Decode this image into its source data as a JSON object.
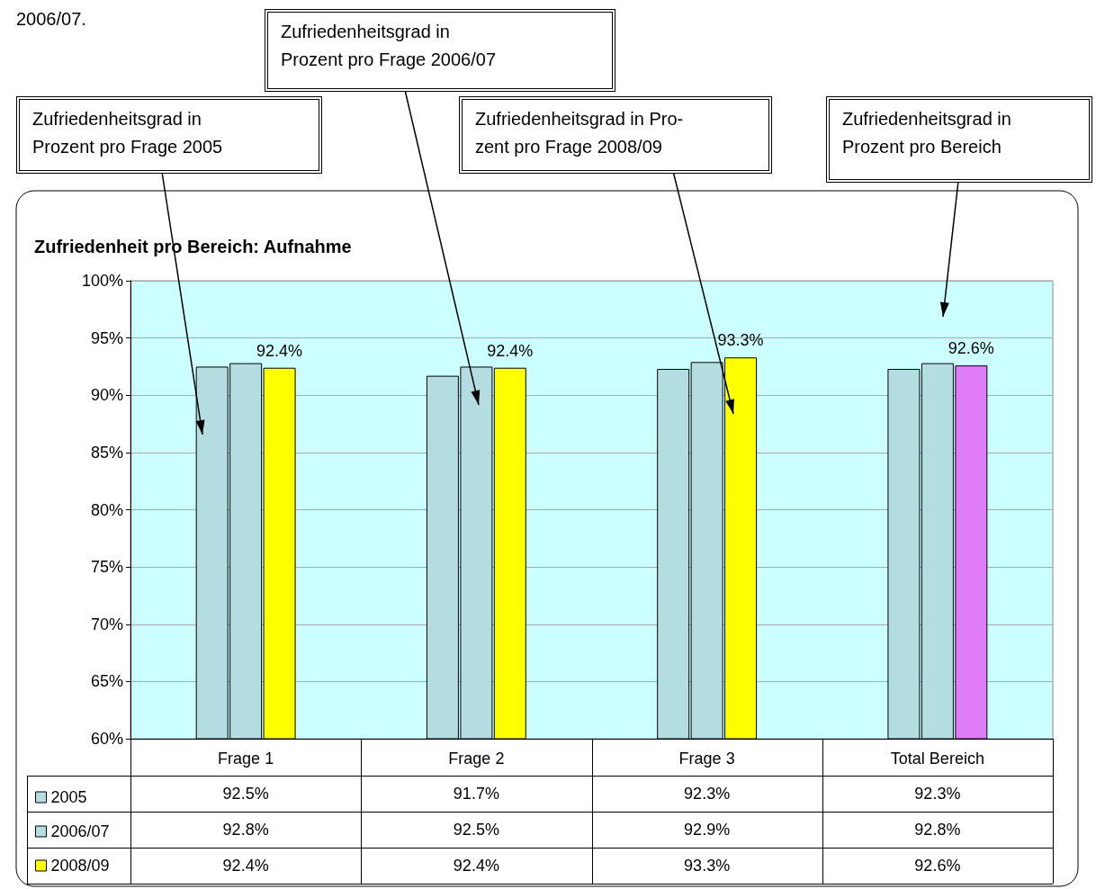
{
  "chart_data": {
    "type": "bar",
    "title": "Zufriedenheit pro Bereich: Aufnahme",
    "categories": [
      "Frage 1",
      "Frage 2",
      "Frage 3",
      "Total Bereich"
    ],
    "series": [
      {
        "name": "2005",
        "color": "#b4dde2",
        "values": [
          92.5,
          91.7,
          92.3,
          92.3
        ],
        "value_labels": [
          "92.5%",
          "91.7%",
          "92.3%",
          "92.3%"
        ]
      },
      {
        "name": "2006/07",
        "color": "#b4dde2",
        "values": [
          92.8,
          92.5,
          92.9,
          92.8
        ],
        "value_labels": [
          "92.8%",
          "92.5%",
          "92.9%",
          "92.8%"
        ]
      },
      {
        "name": "2008/09",
        "color": "#ffff00",
        "colors": [
          "#ffff00",
          "#ffff00",
          "#ffff00",
          "#e07cf8"
        ],
        "values": [
          92.4,
          92.4,
          93.3,
          92.6
        ],
        "value_labels": [
          "92.4%",
          "92.4%",
          "93.3%",
          "92.6%"
        ],
        "data_labels": true
      }
    ],
    "ylim": [
      60,
      100
    ],
    "yticks": [
      {
        "value": 60,
        "label": "60%"
      },
      {
        "value": 65,
        "label": "65%"
      },
      {
        "value": 70,
        "label": "70%"
      },
      {
        "value": 75,
        "label": "75%"
      },
      {
        "value": 80,
        "label": "80%"
      },
      {
        "value": 85,
        "label": "85%"
      },
      {
        "value": 90,
        "label": "90%"
      },
      {
        "value": 95,
        "label": "95%"
      },
      {
        "value": 100,
        "label": "100%"
      }
    ],
    "grid": "y",
    "legend": "bottom left",
    "annotations": [
      "2006/07.",
      "Zufriedenheitsgrad in\nProzent pro Frage 2005",
      "Zufriedenheitsgrad in\nProzent pro Frage 2006/07",
      "Zufriedenheitsgrad in Pro-\nzent pro Frage 2008/09",
      "Zufriedenheitsgrad in\nProzent pro Bereich"
    ]
  }
}
